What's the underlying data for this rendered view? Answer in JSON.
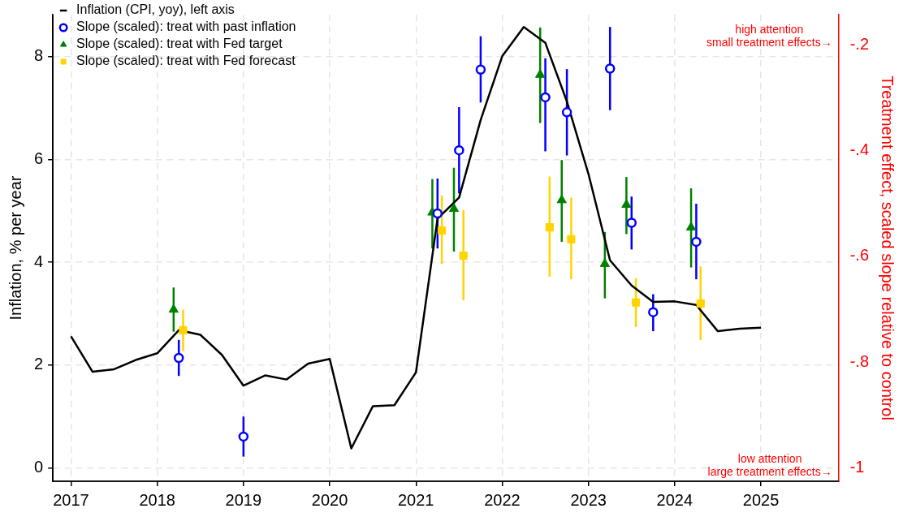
{
  "chart_data": {
    "type": "line",
    "ylabel": "Inflation, % per year",
    "y2label": "Treatment effect, scaled slope relative to control",
    "xlim": [
      2016.79,
      2025.9
    ],
    "xticks": [
      2017,
      2018,
      2019,
      2020,
      2021,
      2022,
      2023,
      2024,
      2025
    ],
    "ylim": [
      -0.26,
      8.82
    ],
    "yticks": [
      0,
      2,
      4,
      6,
      8
    ],
    "y2lim": [
      -1.025,
      -0.143
    ],
    "y2ticks": [
      {
        "value": -1,
        "label": "-1"
      },
      {
        "value": -0.8,
        "label": "-.8"
      },
      {
        "value": -0.6,
        "label": "-.6"
      },
      {
        "value": -0.4,
        "label": "-.4"
      },
      {
        "value": -0.2,
        "label": "-.2"
      }
    ],
    "grid": true,
    "legend": "top left",
    "annotations": [
      "high attention\nsmall treatment effects→",
      "low attention\nlarge treatment effects→"
    ],
    "series": [
      {
        "name": "Inflation (CPI, yoy), left axis",
        "color": "#000000",
        "marker": "none",
        "line_style": "solid",
        "x": [
          2017,
          2017.25,
          2017.5,
          2017.75,
          2018,
          2018.25,
          2018.5,
          2018.75,
          2019,
          2019.25,
          2019.5,
          2019.75,
          2020,
          2020.25,
          2020.5,
          2020.75,
          2021,
          2021.25,
          2021.5,
          2021.75,
          2022,
          2022.25,
          2022.5,
          2022.75,
          2023,
          2023.25,
          2023.5,
          2023.75,
          2024,
          2024.25,
          2024.5,
          2024.75,
          2025
        ],
        "values": [
          2.56,
          1.87,
          1.92,
          2.1,
          2.23,
          2.68,
          2.59,
          2.2,
          1.6,
          1.8,
          1.72,
          2.03,
          2.12,
          0.38,
          1.2,
          1.22,
          1.86,
          4.85,
          5.26,
          6.77,
          8.01,
          8.58,
          8.27,
          7.13,
          5.72,
          4.04,
          3.55,
          3.23,
          3.24,
          3.17,
          2.66,
          2.71,
          2.73
        ]
      },
      {
        "name": "Slope (scaled): treat with past inflation",
        "type": "scatter",
        "color": "#0000ff",
        "marker": "circle",
        "x": [
          2018.25,
          2019,
          2021.25,
          2021.5,
          2021.75,
          2022.5,
          2022.75,
          2023.25,
          2023.5,
          2023.75,
          2024.25
        ],
        "values": [
          2.14,
          0.61,
          4.95,
          6.18,
          7.75,
          7.21,
          6.92,
          7.77,
          4.77,
          3.03,
          4.4
        ],
        "errors": [
          [
            1.79,
            2.49
          ],
          [
            0.22,
            1.0
          ],
          [
            4.27,
            5.63
          ],
          [
            5.34,
            7.02
          ],
          [
            7.11,
            8.4
          ],
          [
            6.16,
            7.97
          ],
          [
            6.08,
            7.76
          ],
          [
            6.96,
            8.58
          ],
          [
            4.25,
            5.28
          ],
          [
            2.66,
            3.38
          ],
          [
            3.67,
            5.14
          ]
        ]
      },
      {
        "name": "Slope (scaled): treat with Fed target",
        "type": "scatter",
        "color": "#008000",
        "marker": "triangle",
        "x": [
          2018.19,
          2021.19,
          2021.44,
          2022.44,
          2022.69,
          2023.19,
          2023.44,
          2024.19
        ],
        "values": [
          3.08,
          4.97,
          5.04,
          7.65,
          5.21,
          3.97,
          5.12,
          4.68
        ],
        "errors": [
          [
            2.65,
            3.51
          ],
          [
            4.27,
            5.62
          ],
          [
            4.21,
            5.84
          ],
          [
            6.71,
            8.57
          ],
          [
            4.4,
            5.99
          ],
          [
            3.3,
            4.59
          ],
          [
            4.55,
            5.66
          ],
          [
            3.9,
            5.44
          ]
        ]
      },
      {
        "name": "Slope (scaled): treat with Fed forecast",
        "type": "scatter",
        "color": "#ffd400",
        "marker": "square",
        "x": [
          2018.3,
          2021.3,
          2021.55,
          2022.55,
          2022.8,
          2023.55,
          2024.3
        ],
        "values": [
          2.68,
          4.62,
          4.13,
          4.68,
          4.45,
          3.22,
          3.2
        ],
        "errors": [
          [
            2.27,
            3.08
          ],
          [
            3.97,
            5.3
          ],
          [
            3.26,
            5.02
          ],
          [
            3.72,
            5.67
          ],
          [
            3.67,
            5.26
          ],
          [
            2.74,
            3.69
          ],
          [
            2.49,
            3.92
          ]
        ]
      }
    ]
  }
}
